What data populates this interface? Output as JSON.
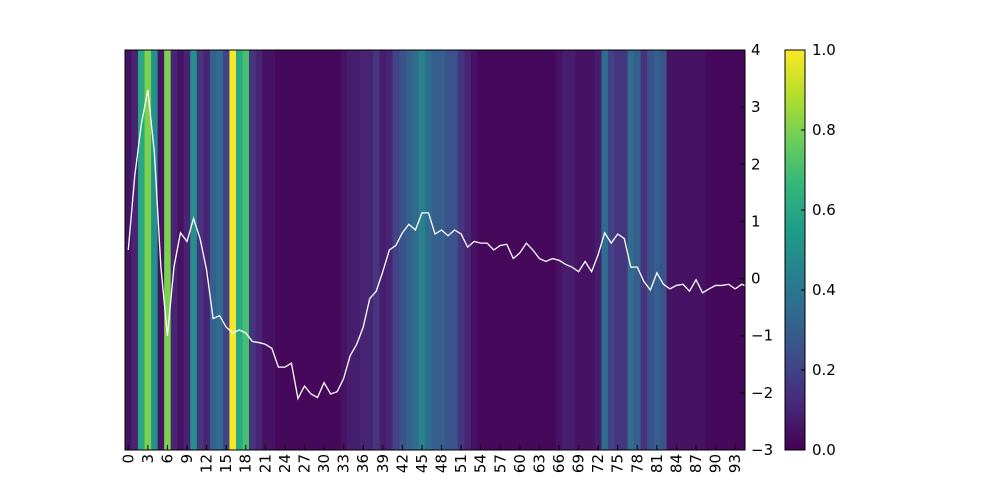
{
  "chart_data": {
    "type": "heatmap",
    "title": "",
    "xlabel": "",
    "ylabel": "",
    "x_ticks": [
      "0",
      "3",
      "6",
      "9",
      "12",
      "15",
      "18",
      "21",
      "24",
      "27",
      "30",
      "33",
      "36",
      "39",
      "42",
      "45",
      "48",
      "51",
      "54",
      "57",
      "60",
      "63",
      "66",
      "69",
      "72",
      "75",
      "78",
      "81",
      "84",
      "87",
      "90",
      "93"
    ],
    "y_right_ticks": [
      "−3",
      "−2",
      "−1",
      "0",
      "1",
      "2",
      "3",
      "4"
    ],
    "ylim": [
      -3,
      4
    ],
    "colorbar": {
      "range": [
        0.0,
        1.0
      ],
      "ticks": [
        "0.0",
        "0.2",
        "0.4",
        "0.6",
        "0.8",
        "1.0"
      ],
      "colormap": [
        "#440154",
        "#482878",
        "#3e4a89",
        "#31688e",
        "#26828e",
        "#1f9e89",
        "#35b779",
        "#6ece58",
        "#b5de2b",
        "#fde725"
      ]
    },
    "line_color": "#ffffff",
    "heat_values": [
      0.05,
      0.1,
      0.6,
      0.8,
      0.5,
      0.05,
      0.8,
      0.1,
      0.05,
      0.1,
      0.5,
      0.15,
      0.1,
      0.3,
      0.35,
      0.2,
      1.0,
      0.6,
      0.7,
      0.15,
      0.1,
      0.05,
      0.05,
      0.02,
      0.02,
      0.02,
      0.02,
      0.02,
      0.02,
      0.02,
      0.02,
      0.02,
      0.02,
      0.05,
      0.08,
      0.08,
      0.1,
      0.1,
      0.15,
      0.08,
      0.1,
      0.2,
      0.25,
      0.3,
      0.35,
      0.45,
      0.35,
      0.3,
      0.3,
      0.25,
      0.25,
      0.15,
      0.1,
      0.05,
      0.02,
      0.02,
      0.02,
      0.02,
      0.02,
      0.02,
      0.02,
      0.02,
      0.02,
      0.02,
      0.02,
      0.02,
      0.05,
      0.08,
      0.08,
      0.05,
      0.05,
      0.05,
      0.08,
      0.35,
      0.2,
      0.15,
      0.15,
      0.35,
      0.3,
      0.15,
      0.25,
      0.3,
      0.25,
      0.05,
      0.05,
      0.05,
      0.05,
      0.05,
      0.05,
      0.02,
      0.02,
      0.02,
      0.02,
      0.02,
      0.02
    ],
    "line_values": [
      0.5,
      1.8,
      2.7,
      3.3,
      2.2,
      0.2,
      -1.0,
      0.2,
      0.8,
      0.65,
      1.05,
      0.7,
      0.15,
      -0.7,
      -0.65,
      -0.85,
      -0.95,
      -0.9,
      -0.95,
      -1.1,
      -1.12,
      -1.15,
      -1.22,
      -1.55,
      -1.55,
      -1.48,
      -2.1,
      -1.88,
      -2.02,
      -2.08,
      -1.82,
      -2.02,
      -1.98,
      -1.75,
      -1.35,
      -1.15,
      -0.85,
      -0.35,
      -0.22,
      0.12,
      0.5,
      0.58,
      0.8,
      0.95,
      0.85,
      1.15,
      1.15,
      0.78,
      0.85,
      0.75,
      0.85,
      0.78,
      0.55,
      0.65,
      0.62,
      0.62,
      0.5,
      0.58,
      0.6,
      0.35,
      0.45,
      0.62,
      0.5,
      0.35,
      0.3,
      0.35,
      0.32,
      0.25,
      0.2,
      0.12,
      0.3,
      0.12,
      0.42,
      0.8,
      0.62,
      0.78,
      0.7,
      0.2,
      0.2,
      -0.05,
      -0.2,
      0.1,
      -0.1,
      -0.18,
      -0.12,
      -0.1,
      -0.22,
      -0.02,
      -0.25,
      -0.18,
      -0.12,
      -0.12,
      -0.1,
      -0.18,
      -0.1,
      -0.15,
      0.1
    ]
  }
}
